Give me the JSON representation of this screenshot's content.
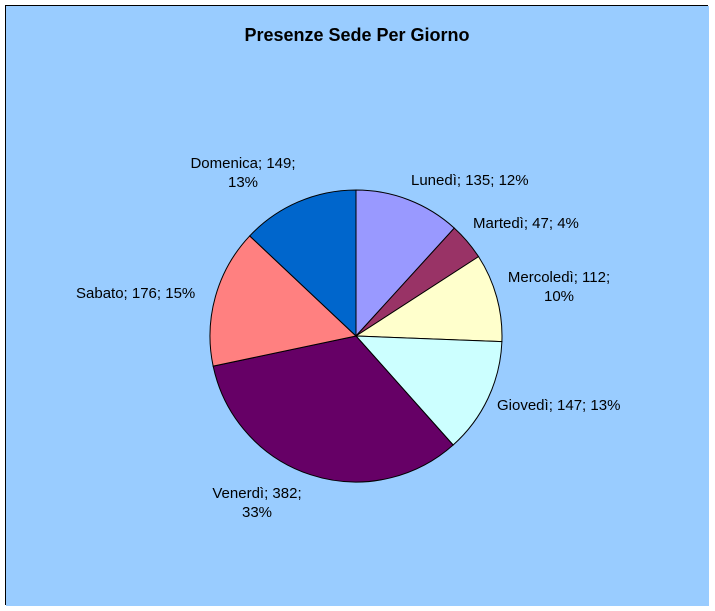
{
  "chart_data": {
    "type": "pie",
    "title": "Presenze Sede Per Giorno",
    "background_color": "#99ccff",
    "border_color": "#000000",
    "slice_border_color": "#000000",
    "slices": [
      {
        "label": "Lunedì",
        "value": 135,
        "percent": "12%",
        "color": "#9999ff",
        "text_lines": [
          "Lunedì; 135; 12%"
        ]
      },
      {
        "label": "Martedì",
        "value": 47,
        "percent": "4%",
        "color": "#993366",
        "text_lines": [
          "Martedì; 47; 4%"
        ]
      },
      {
        "label": "Mercoledì",
        "value": 112,
        "percent": "10%",
        "color": "#ffffcc",
        "text_lines": [
          "Mercoledì; 112;",
          "10%"
        ]
      },
      {
        "label": "Giovedì",
        "value": 147,
        "percent": "13%",
        "color": "#ccffff",
        "text_lines": [
          "Giovedì; 147; 13%"
        ]
      },
      {
        "label": "Venerdì",
        "value": 382,
        "percent": "33%",
        "color": "#660066",
        "text_lines": [
          "Venerdì; 382;",
          "33%"
        ]
      },
      {
        "label": "Sabato",
        "value": 176,
        "percent": "15%",
        "color": "#ff8080",
        "text_lines": [
          "Sabato; 176; 15%"
        ]
      },
      {
        "label": "Domenica",
        "value": 149,
        "percent": "13%",
        "color": "#0066cc",
        "text_lines": [
          "Domenica; 149;",
          "13%"
        ]
      }
    ]
  }
}
